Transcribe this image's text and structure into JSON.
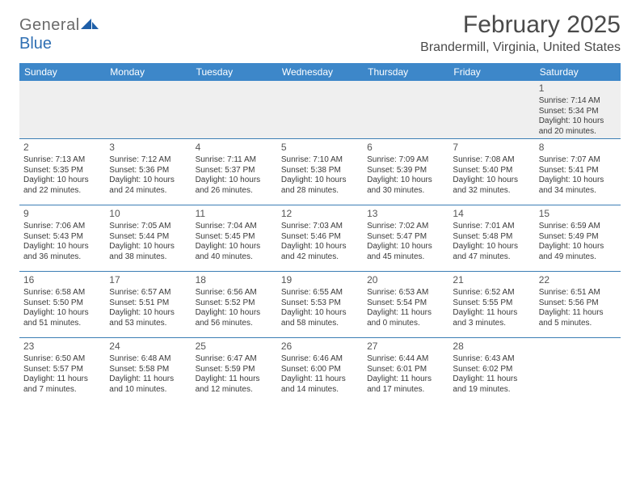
{
  "brand": {
    "text1": "General",
    "text2": "Blue"
  },
  "title": "February 2025",
  "location": "Brandermill, Virginia, United States",
  "colors": {
    "header_bg": "#3d87c9",
    "header_text": "#ffffff",
    "row_sep": "#3d7fb5",
    "blank_bg": "#efefef",
    "text": "#3a3a3a",
    "logo_gray": "#6a6a6a",
    "logo_blue": "#2f6fb3"
  },
  "columns": [
    "Sunday",
    "Monday",
    "Tuesday",
    "Wednesday",
    "Thursday",
    "Friday",
    "Saturday"
  ],
  "weeks": [
    [
      null,
      null,
      null,
      null,
      null,
      null,
      {
        "n": "1",
        "sunrise": "7:14 AM",
        "sunset": "5:34 PM",
        "dl1": "Daylight: 10 hours",
        "dl2": "and 20 minutes."
      }
    ],
    [
      {
        "n": "2",
        "sunrise": "7:13 AM",
        "sunset": "5:35 PM",
        "dl1": "Daylight: 10 hours",
        "dl2": "and 22 minutes."
      },
      {
        "n": "3",
        "sunrise": "7:12 AM",
        "sunset": "5:36 PM",
        "dl1": "Daylight: 10 hours",
        "dl2": "and 24 minutes."
      },
      {
        "n": "4",
        "sunrise": "7:11 AM",
        "sunset": "5:37 PM",
        "dl1": "Daylight: 10 hours",
        "dl2": "and 26 minutes."
      },
      {
        "n": "5",
        "sunrise": "7:10 AM",
        "sunset": "5:38 PM",
        "dl1": "Daylight: 10 hours",
        "dl2": "and 28 minutes."
      },
      {
        "n": "6",
        "sunrise": "7:09 AM",
        "sunset": "5:39 PM",
        "dl1": "Daylight: 10 hours",
        "dl2": "and 30 minutes."
      },
      {
        "n": "7",
        "sunrise": "7:08 AM",
        "sunset": "5:40 PM",
        "dl1": "Daylight: 10 hours",
        "dl2": "and 32 minutes."
      },
      {
        "n": "8",
        "sunrise": "7:07 AM",
        "sunset": "5:41 PM",
        "dl1": "Daylight: 10 hours",
        "dl2": "and 34 minutes."
      }
    ],
    [
      {
        "n": "9",
        "sunrise": "7:06 AM",
        "sunset": "5:43 PM",
        "dl1": "Daylight: 10 hours",
        "dl2": "and 36 minutes."
      },
      {
        "n": "10",
        "sunrise": "7:05 AM",
        "sunset": "5:44 PM",
        "dl1": "Daylight: 10 hours",
        "dl2": "and 38 minutes."
      },
      {
        "n": "11",
        "sunrise": "7:04 AM",
        "sunset": "5:45 PM",
        "dl1": "Daylight: 10 hours",
        "dl2": "and 40 minutes."
      },
      {
        "n": "12",
        "sunrise": "7:03 AM",
        "sunset": "5:46 PM",
        "dl1": "Daylight: 10 hours",
        "dl2": "and 42 minutes."
      },
      {
        "n": "13",
        "sunrise": "7:02 AM",
        "sunset": "5:47 PM",
        "dl1": "Daylight: 10 hours",
        "dl2": "and 45 minutes."
      },
      {
        "n": "14",
        "sunrise": "7:01 AM",
        "sunset": "5:48 PM",
        "dl1": "Daylight: 10 hours",
        "dl2": "and 47 minutes."
      },
      {
        "n": "15",
        "sunrise": "6:59 AM",
        "sunset": "5:49 PM",
        "dl1": "Daylight: 10 hours",
        "dl2": "and 49 minutes."
      }
    ],
    [
      {
        "n": "16",
        "sunrise": "6:58 AM",
        "sunset": "5:50 PM",
        "dl1": "Daylight: 10 hours",
        "dl2": "and 51 minutes."
      },
      {
        "n": "17",
        "sunrise": "6:57 AM",
        "sunset": "5:51 PM",
        "dl1": "Daylight: 10 hours",
        "dl2": "and 53 minutes."
      },
      {
        "n": "18",
        "sunrise": "6:56 AM",
        "sunset": "5:52 PM",
        "dl1": "Daylight: 10 hours",
        "dl2": "and 56 minutes."
      },
      {
        "n": "19",
        "sunrise": "6:55 AM",
        "sunset": "5:53 PM",
        "dl1": "Daylight: 10 hours",
        "dl2": "and 58 minutes."
      },
      {
        "n": "20",
        "sunrise": "6:53 AM",
        "sunset": "5:54 PM",
        "dl1": "Daylight: 11 hours",
        "dl2": "and 0 minutes."
      },
      {
        "n": "21",
        "sunrise": "6:52 AM",
        "sunset": "5:55 PM",
        "dl1": "Daylight: 11 hours",
        "dl2": "and 3 minutes."
      },
      {
        "n": "22",
        "sunrise": "6:51 AM",
        "sunset": "5:56 PM",
        "dl1": "Daylight: 11 hours",
        "dl2": "and 5 minutes."
      }
    ],
    [
      {
        "n": "23",
        "sunrise": "6:50 AM",
        "sunset": "5:57 PM",
        "dl1": "Daylight: 11 hours",
        "dl2": "and 7 minutes."
      },
      {
        "n": "24",
        "sunrise": "6:48 AM",
        "sunset": "5:58 PM",
        "dl1": "Daylight: 11 hours",
        "dl2": "and 10 minutes."
      },
      {
        "n": "25",
        "sunrise": "6:47 AM",
        "sunset": "5:59 PM",
        "dl1": "Daylight: 11 hours",
        "dl2": "and 12 minutes."
      },
      {
        "n": "26",
        "sunrise": "6:46 AM",
        "sunset": "6:00 PM",
        "dl1": "Daylight: 11 hours",
        "dl2": "and 14 minutes."
      },
      {
        "n": "27",
        "sunrise": "6:44 AM",
        "sunset": "6:01 PM",
        "dl1": "Daylight: 11 hours",
        "dl2": "and 17 minutes."
      },
      {
        "n": "28",
        "sunrise": "6:43 AM",
        "sunset": "6:02 PM",
        "dl1": "Daylight: 11 hours",
        "dl2": "and 19 minutes."
      },
      null
    ]
  ],
  "labels": {
    "sunrise": "Sunrise:",
    "sunset": "Sunset:"
  }
}
